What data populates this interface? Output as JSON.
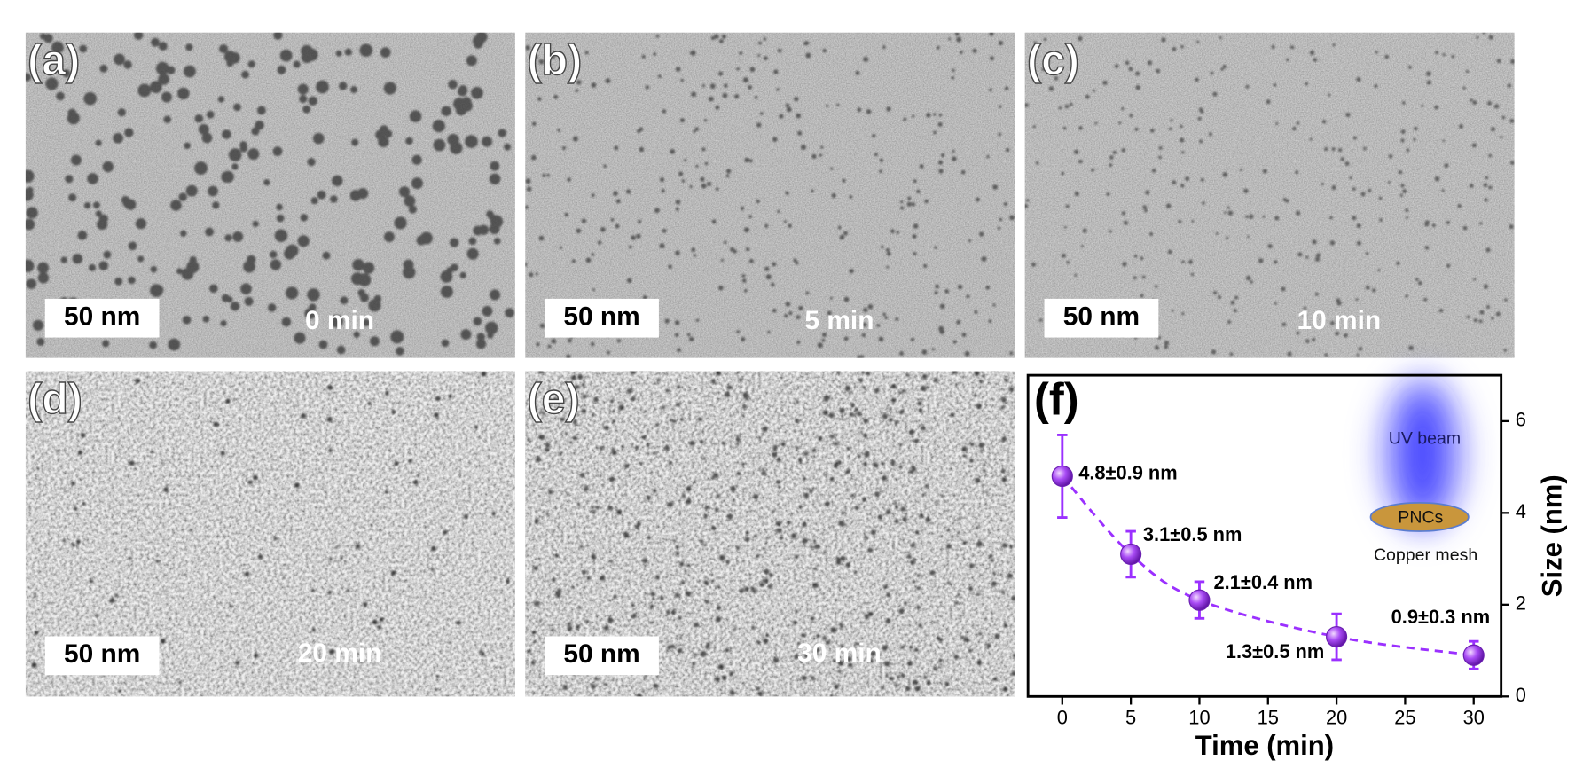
{
  "panels": [
    {
      "label": "(a)",
      "scale_bar": "50 nm",
      "time": "0 min"
    },
    {
      "label": "(b)",
      "scale_bar": "50 nm",
      "time": "5 min"
    },
    {
      "label": "(c)",
      "scale_bar": "50 nm",
      "time": "10 min"
    },
    {
      "label": "(d)",
      "scale_bar": "50 nm",
      "time": "20 min"
    },
    {
      "label": "(e)",
      "scale_bar": "50 nm",
      "time": "30 min"
    }
  ],
  "chart_data": {
    "type": "line",
    "panel_label": "(f)",
    "x_label": "Time (min)",
    "y_label": "Size (nm)",
    "y_axis_side": "right",
    "x": [
      0,
      5,
      10,
      20,
      30
    ],
    "series": [
      {
        "color": "#9b30ff",
        "values": [
          4.8,
          3.1,
          2.1,
          1.3,
          0.9
        ],
        "errors": [
          0.9,
          0.5,
          0.4,
          0.5,
          0.3
        ],
        "value_labels": [
          "4.8±0.9 nm",
          "3.1±0.5 nm",
          "2.1±0.4 nm",
          "1.3±0.5 nm",
          "0.9±0.3 nm"
        ]
      }
    ],
    "xlim": [
      -2.5,
      32
    ],
    "xticks": [
      0,
      5,
      10,
      15,
      20,
      25,
      30
    ],
    "ylim": [
      0,
      7
    ],
    "yticks": [
      0,
      2,
      4,
      6
    ],
    "inset": {
      "beam_label": "UV beam",
      "sample_label": "PNCs",
      "substrate_label": "Copper mesh"
    }
  }
}
